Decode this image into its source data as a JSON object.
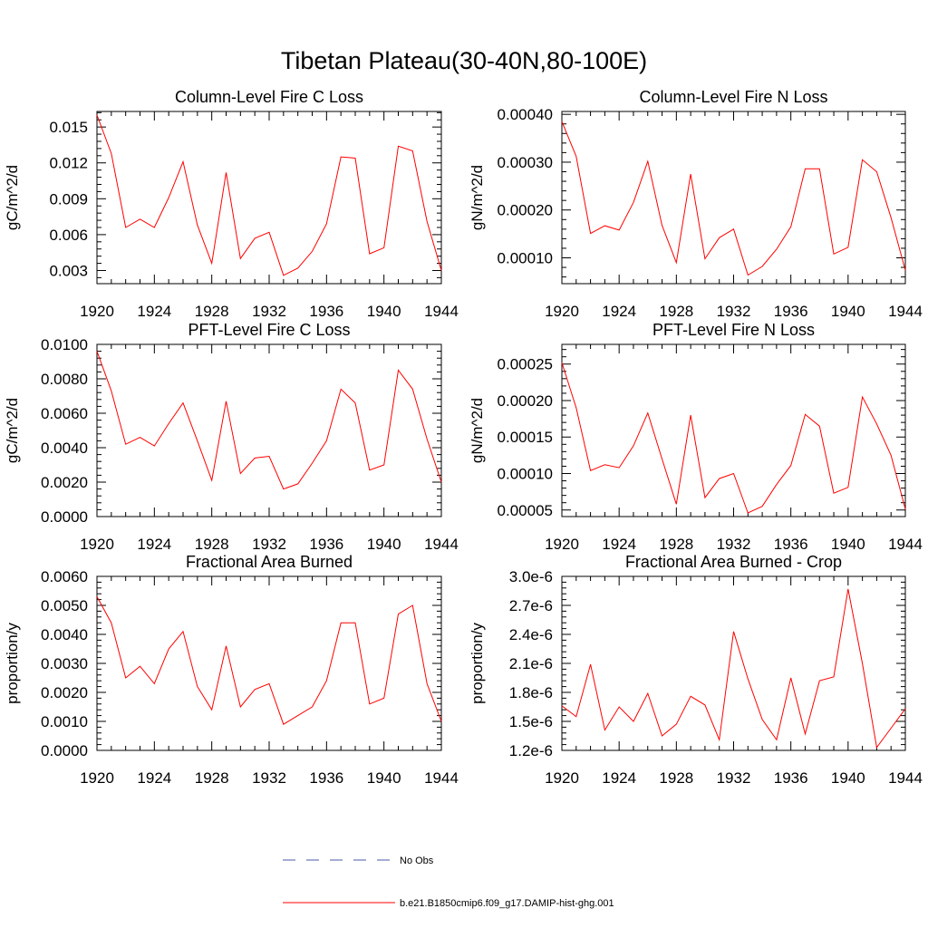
{
  "title": "Tibetan Plateau(30-40N,80-100E)",
  "legend": [
    {
      "label": "No Obs",
      "color": "#4a5aa8",
      "dash": true
    },
    {
      "label": "b.e21.B1850cmip6.f09_g17.DAMIP-hist-ghg.001",
      "color": "#ff0000",
      "dash": false
    }
  ],
  "chart_data": [
    {
      "type": "line",
      "title": "Column-Level Fire C Loss",
      "ylabel": "gC/m^2/d",
      "xlim": [
        1920,
        1944
      ],
      "ylim": [
        0.0019,
        0.0163
      ],
      "xticks": [
        1920,
        1924,
        1928,
        1932,
        1936,
        1940,
        1944
      ],
      "xtick_labels": [
        "1920",
        "1924",
        "1928",
        "1932",
        "1936",
        "1940",
        "1944"
      ],
      "yticks": [
        0.003,
        0.006,
        0.009,
        0.012,
        0.015
      ],
      "ytick_labels": [
        "0.003",
        "0.006",
        "0.009",
        "0.012",
        "0.015"
      ],
      "x": [
        1920,
        1921,
        1922,
        1923,
        1924,
        1925,
        1926,
        1927,
        1928,
        1929,
        1930,
        1931,
        1932,
        1933,
        1934,
        1935,
        1936,
        1937,
        1938,
        1939,
        1940,
        1941,
        1942,
        1943,
        1944
      ],
      "series": [
        {
          "values": [
            0.016,
            0.0128,
            0.0066,
            0.0073,
            0.0066,
            0.0091,
            0.0121,
            0.0068,
            0.0036,
            0.0112,
            0.004,
            0.0057,
            0.0062,
            0.0026,
            0.0032,
            0.0046,
            0.0069,
            0.0125,
            0.0124,
            0.0044,
            0.0049,
            0.0134,
            0.013,
            0.0071,
            0.003
          ]
        }
      ]
    },
    {
      "type": "line",
      "title": "Column-Level Fire N Loss",
      "ylabel": "gN/m^2/d",
      "xlim": [
        1920,
        1944
      ],
      "ylim": [
        4.6e-05,
        0.000406
      ],
      "xticks": [
        1920,
        1924,
        1928,
        1932,
        1936,
        1940,
        1944
      ],
      "xtick_labels": [
        "1920",
        "1924",
        "1928",
        "1932",
        "1936",
        "1940",
        "1944"
      ],
      "yticks": [
        0.0001,
        0.0002,
        0.0003,
        0.0004
      ],
      "ytick_labels": [
        "0.00010",
        "0.00020",
        "0.00030",
        "0.00040"
      ],
      "x": [
        1920,
        1921,
        1922,
        1923,
        1924,
        1925,
        1926,
        1927,
        1928,
        1929,
        1930,
        1931,
        1932,
        1933,
        1934,
        1935,
        1936,
        1937,
        1938,
        1939,
        1940,
        1941,
        1942,
        1943,
        1944
      ],
      "series": [
        {
          "values": [
            0.000385,
            0.000312,
            0.000151,
            0.000167,
            0.000158,
            0.000216,
            0.000302,
            0.000168,
            9e-05,
            0.000275,
            9.8e-05,
            0.000142,
            0.00016,
            6.4e-05,
            8.2e-05,
            0.000118,
            0.000165,
            0.000286,
            0.000286,
            0.000108,
            0.000122,
            0.000305,
            0.00028,
            0.000184,
            7.4e-05
          ]
        }
      ]
    },
    {
      "type": "line",
      "title": "PFT-Level Fire C Loss",
      "ylabel": "gC/m^2/d",
      "xlim": [
        1920,
        1944
      ],
      "ylim": [
        0.0,
        0.01
      ],
      "xticks": [
        1920,
        1924,
        1928,
        1932,
        1936,
        1940,
        1944
      ],
      "xtick_labels": [
        "1920",
        "1924",
        "1928",
        "1932",
        "1936",
        "1940",
        "1944"
      ],
      "yticks": [
        0.0,
        0.002,
        0.004,
        0.006,
        0.008,
        0.01
      ],
      "ytick_labels": [
        "0.0000",
        "0.0020",
        "0.0040",
        "0.0060",
        "0.0080",
        "0.0100"
      ],
      "x": [
        1920,
        1921,
        1922,
        1923,
        1924,
        1925,
        1926,
        1927,
        1928,
        1929,
        1930,
        1931,
        1932,
        1933,
        1934,
        1935,
        1936,
        1937,
        1938,
        1939,
        1940,
        1941,
        1942,
        1943,
        1944
      ],
      "series": [
        {
          "values": [
            0.0096,
            0.0073,
            0.0042,
            0.0046,
            0.0041,
            0.0054,
            0.0066,
            0.0044,
            0.0021,
            0.0067,
            0.0025,
            0.0034,
            0.0035,
            0.0016,
            0.0019,
            0.0031,
            0.0044,
            0.0074,
            0.0066,
            0.0027,
            0.003,
            0.0085,
            0.0074,
            0.0045,
            0.002
          ]
        }
      ]
    },
    {
      "type": "line",
      "title": "PFT-Level Fire N Loss",
      "ylabel": "gN/m^2/d",
      "xlim": [
        1920,
        1944
      ],
      "ylim": [
        4.1e-05,
        0.000277
      ],
      "xticks": [
        1920,
        1924,
        1928,
        1932,
        1936,
        1940,
        1944
      ],
      "xtick_labels": [
        "1920",
        "1924",
        "1928",
        "1932",
        "1936",
        "1940",
        "1944"
      ],
      "yticks": [
        5e-05,
        0.0001,
        0.00015,
        0.0002,
        0.00025
      ],
      "ytick_labels": [
        "0.00005",
        "0.00010",
        "0.00015",
        "0.00020",
        "0.00025"
      ],
      "x": [
        1920,
        1921,
        1922,
        1923,
        1924,
        1925,
        1926,
        1927,
        1928,
        1929,
        1930,
        1931,
        1932,
        1933,
        1934,
        1935,
        1936,
        1937,
        1938,
        1939,
        1940,
        1941,
        1942,
        1943,
        1944
      ],
      "series": [
        {
          "values": [
            0.000252,
            0.00019,
            0.000104,
            0.000112,
            0.000108,
            0.000138,
            0.000183,
            0.00012,
            5.8e-05,
            0.00018,
            6.7e-05,
            9.3e-05,
            0.0001,
            4.6e-05,
            5.5e-05,
            8.5e-05,
            0.000111,
            0.000181,
            0.000165,
            7.3e-05,
            8.1e-05,
            0.000205,
            0.000168,
            0.000125,
            5.1e-05
          ]
        }
      ]
    },
    {
      "type": "line",
      "title": "Fractional Area Burned",
      "ylabel": "proportion/y",
      "xlim": [
        1920,
        1944
      ],
      "ylim": [
        0.0,
        0.006
      ],
      "xticks": [
        1920,
        1924,
        1928,
        1932,
        1936,
        1940,
        1944
      ],
      "xtick_labels": [
        "1920",
        "1924",
        "1928",
        "1932",
        "1936",
        "1940",
        "1944"
      ],
      "yticks": [
        0.0,
        0.001,
        0.002,
        0.003,
        0.004,
        0.005,
        0.006
      ],
      "ytick_labels": [
        "0.0000",
        "0.0010",
        "0.0020",
        "0.0030",
        "0.0040",
        "0.0050",
        "0.0060"
      ],
      "x": [
        1920,
        1921,
        1922,
        1923,
        1924,
        1925,
        1926,
        1927,
        1928,
        1929,
        1930,
        1931,
        1932,
        1933,
        1934,
        1935,
        1936,
        1937,
        1938,
        1939,
        1940,
        1941,
        1942,
        1943,
        1944
      ],
      "series": [
        {
          "values": [
            0.0053,
            0.0044,
            0.0025,
            0.0029,
            0.0023,
            0.0035,
            0.0041,
            0.0022,
            0.0014,
            0.0036,
            0.0015,
            0.0021,
            0.0023,
            0.0009,
            0.0012,
            0.0015,
            0.0024,
            0.0044,
            0.0044,
            0.0016,
            0.0018,
            0.0047,
            0.005,
            0.0023,
            0.001
          ]
        }
      ]
    },
    {
      "type": "line",
      "title": "Fractional Area Burned - Crop",
      "ylabel": "proportion/y",
      "xlim": [
        1920,
        1944
      ],
      "ylim": [
        1.2e-06,
        3e-06
      ],
      "xticks": [
        1920,
        1924,
        1928,
        1932,
        1936,
        1940,
        1944
      ],
      "xtick_labels": [
        "1920",
        "1924",
        "1928",
        "1932",
        "1936",
        "1940",
        "1944"
      ],
      "yticks": [
        1.2e-06,
        1.5e-06,
        1.8e-06,
        2.1e-06,
        2.4e-06,
        2.7e-06,
        3e-06
      ],
      "ytick_labels": [
        "1.2e-6",
        "1.5e-6",
        "1.8e-6",
        "2.1e-6",
        "2.4e-6",
        "2.7e-6",
        "3.0e-6"
      ],
      "x": [
        1920,
        1921,
        1922,
        1923,
        1924,
        1925,
        1926,
        1927,
        1928,
        1929,
        1930,
        1931,
        1932,
        1933,
        1934,
        1935,
        1936,
        1937,
        1938,
        1939,
        1940,
        1941,
        1942,
        1943,
        1944
      ],
      "series": [
        {
          "values": [
            1.66e-06,
            1.55e-06,
            2.09e-06,
            1.41e-06,
            1.65e-06,
            1.5e-06,
            1.79e-06,
            1.35e-06,
            1.47e-06,
            1.76e-06,
            1.67e-06,
            1.31e-06,
            2.43e-06,
            1.94e-06,
            1.52e-06,
            1.31e-06,
            1.95e-06,
            1.37e-06,
            1.92e-06,
            1.96e-06,
            2.87e-06,
            2.1e-06,
            1.23e-06,
            1.43e-06,
            1.63e-06
          ]
        }
      ]
    }
  ]
}
